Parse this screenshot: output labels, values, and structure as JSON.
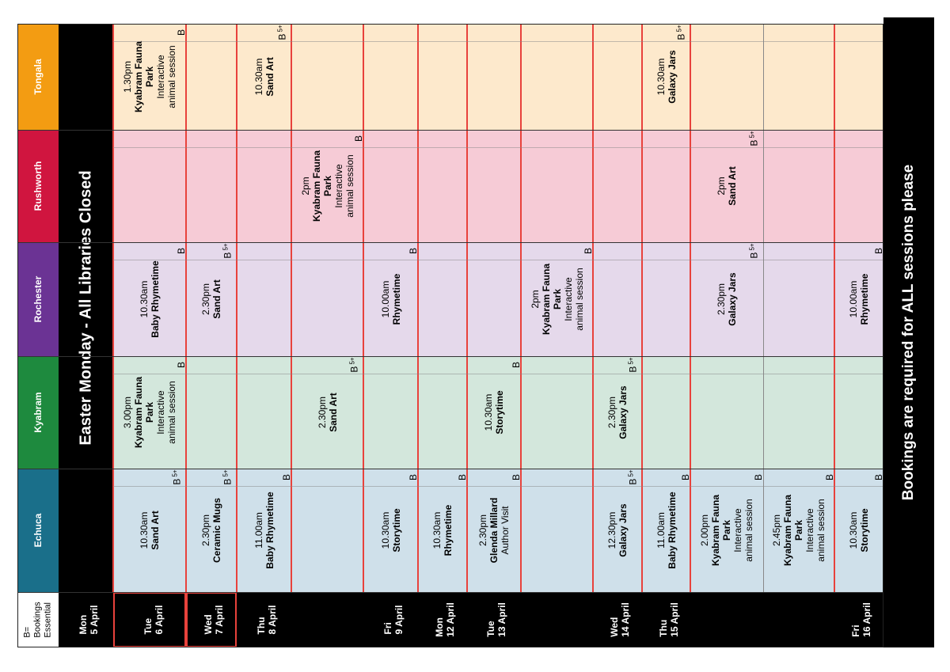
{
  "legend": [
    "B=",
    "Bookings",
    "Essential"
  ],
  "libraries": [
    {
      "name": "Echuca",
      "color": "#1a6f8a",
      "bg": "#cfe0ea"
    },
    {
      "name": "Kyabram",
      "color": "#1e8a3e",
      "bg": "#d3e7dc"
    },
    {
      "name": "Rochester",
      "color": "#6b3394",
      "bg": "#e5d9eb"
    },
    {
      "name": "Rushworth",
      "color": "#d0153f",
      "bg": "#f6cbd6"
    },
    {
      "name": "Tongala",
      "color": "#f39c12",
      "bg": "#fde9cc"
    }
  ],
  "closed_banner": "Easter Monday - All Libraries Closed",
  "footer": "Bookings are required for ALL sessions please",
  "days": [
    {
      "day": "Mon",
      "date": "5 April"
    },
    {
      "day": "Tue",
      "date": "6 April"
    },
    {
      "day": "Wed",
      "date": "7 April"
    },
    {
      "day": "Thu",
      "date": "8 April"
    },
    {
      "day": "",
      "date": ""
    },
    {
      "day": "Fri",
      "date": "9 April"
    },
    {
      "day": "Mon",
      "date": "12 April"
    },
    {
      "day": "Tue",
      "date": "13 April"
    },
    {
      "day": "",
      "date": ""
    },
    {
      "day": "Wed",
      "date": "14 April"
    },
    {
      "day": "Thu",
      "date": "15 April"
    },
    {
      "day": "",
      "date": ""
    },
    {
      "day": "",
      "date": ""
    },
    {
      "day": "Fri",
      "date": "16 April"
    }
  ],
  "events": [
    {
      "row": 1,
      "lib": 0,
      "lines": [
        "10.30am",
        "Sand Art"
      ],
      "bold": [
        1
      ],
      "badge": "B",
      "age": "5+"
    },
    {
      "row": 2,
      "lib": 0,
      "lines": [
        "2.30pm",
        "Ceramic Mugs"
      ],
      "bold": [
        1
      ],
      "badge": "B",
      "age": "5+"
    },
    {
      "row": 3,
      "lib": 0,
      "lines": [
        "11.00am",
        "Baby Rhymetime"
      ],
      "bold": [
        1
      ],
      "badge": "B",
      "age": ""
    },
    {
      "row": 5,
      "lib": 0,
      "lines": [
        "10.30am",
        "Storytime"
      ],
      "bold": [
        1
      ],
      "badge": "B",
      "age": ""
    },
    {
      "row": 6,
      "lib": 0,
      "lines": [
        "10.30am",
        "Rhymetime"
      ],
      "bold": [
        1
      ],
      "badge": "B",
      "age": ""
    },
    {
      "row": 7,
      "lib": 0,
      "lines": [
        "2.30pm",
        "Glenda Millard",
        "Author Visit"
      ],
      "bold": [
        1
      ],
      "badge": "B",
      "age": ""
    },
    {
      "row": 9,
      "lib": 0,
      "lines": [
        "12.30pm",
        "Galaxy Jars"
      ],
      "bold": [
        1
      ],
      "badge": "B",
      "age": "5+"
    },
    {
      "row": 10,
      "lib": 0,
      "lines": [
        "11.00am",
        "Baby Rhymetime"
      ],
      "bold": [
        1
      ],
      "badge": "B",
      "age": ""
    },
    {
      "row": 11,
      "lib": 0,
      "lines": [
        "2.00pm",
        "Kyabram Fauna",
        "Park",
        "Interactive",
        "animal session"
      ],
      "bold": [
        1,
        2
      ],
      "badge": "B",
      "age": ""
    },
    {
      "row": 12,
      "lib": 0,
      "lines": [
        "2.45pm",
        "Kyabram Fauna",
        "Park",
        "Interactive",
        "animal session"
      ],
      "bold": [
        1,
        2
      ],
      "badge": "B",
      "age": ""
    },
    {
      "row": 13,
      "lib": 0,
      "lines": [
        "10.30am",
        "Storytime"
      ],
      "bold": [
        1
      ],
      "badge": "B",
      "age": ""
    },
    {
      "row": 1,
      "lib": 1,
      "lines": [
        "3.00pm",
        "Kyabram Fauna",
        "Park",
        "Interactive",
        "animal session"
      ],
      "bold": [
        1,
        2
      ],
      "badge": "B",
      "age": ""
    },
    {
      "row": 4,
      "lib": 1,
      "lines": [
        "2.30pm",
        "Sand Art"
      ],
      "bold": [
        1
      ],
      "badge": "B",
      "age": "5+"
    },
    {
      "row": 7,
      "lib": 1,
      "lines": [
        "10.30am",
        "Storytime"
      ],
      "bold": [
        1
      ],
      "badge": "B",
      "age": ""
    },
    {
      "row": 9,
      "lib": 1,
      "lines": [
        "2.30pm",
        "Galaxy Jars"
      ],
      "bold": [
        1
      ],
      "badge": "B",
      "age": "5+"
    },
    {
      "row": 1,
      "lib": 2,
      "lines": [
        "10.30am",
        "Baby Rhymetime"
      ],
      "bold": [
        1
      ],
      "badge": "B",
      "age": ""
    },
    {
      "row": 2,
      "lib": 2,
      "lines": [
        "2.30pm",
        "Sand Art"
      ],
      "bold": [
        1
      ],
      "badge": "B",
      "age": "5+"
    },
    {
      "row": 5,
      "lib": 2,
      "lines": [
        "10.00am",
        "Rhymetime"
      ],
      "bold": [
        1
      ],
      "badge": "B",
      "age": ""
    },
    {
      "row": 8,
      "lib": 2,
      "lines": [
        "2pm",
        "Kyabram Fauna",
        "Park",
        "Interactive",
        "animal session"
      ],
      "bold": [
        1,
        2
      ],
      "badge": "B",
      "age": ""
    },
    {
      "row": 11,
      "lib": 2,
      "lines": [
        "2.30pm",
        "Galaxy Jars"
      ],
      "bold": [
        1
      ],
      "badge": "B",
      "age": "5+"
    },
    {
      "row": 13,
      "lib": 2,
      "lines": [
        "10.00am",
        "Rhymetime"
      ],
      "bold": [
        1
      ],
      "badge": "B",
      "age": ""
    },
    {
      "row": 4,
      "lib": 3,
      "lines": [
        "2pm",
        "Kyabram Fauna",
        "Park",
        "Interactive",
        "animal session"
      ],
      "bold": [
        1,
        2
      ],
      "badge": "B",
      "age": ""
    },
    {
      "row": 11,
      "lib": 3,
      "lines": [
        "2pm",
        "Sand Art"
      ],
      "bold": [
        1
      ],
      "badge": "B",
      "age": "5+"
    },
    {
      "row": 1,
      "lib": 4,
      "lines": [
        "1.30pm",
        "Kyabram Fauna",
        "Park",
        "Interactive",
        "animal session"
      ],
      "bold": [
        1,
        2
      ],
      "badge": "B",
      "age": ""
    },
    {
      "row": 3,
      "lib": 4,
      "lines": [
        "10.30am",
        "Sand Art"
      ],
      "bold": [
        1
      ],
      "badge": "B",
      "age": "5+"
    },
    {
      "row": 10,
      "lib": 4,
      "lines": [
        "10.30am",
        "Galaxy Jars"
      ],
      "bold": [
        1
      ],
      "badge": "B",
      "age": "5+"
    }
  ]
}
